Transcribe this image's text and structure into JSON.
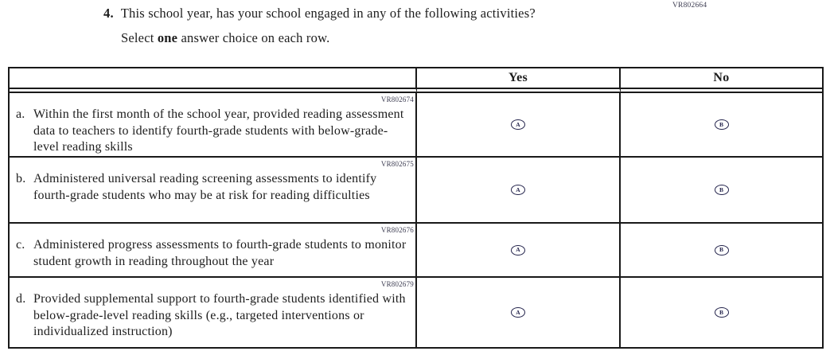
{
  "question": {
    "number": "4.",
    "text": "This school year, has your school engaged in any of the following activities?",
    "instruction_prefix": "Select ",
    "instruction_bold": "one",
    "instruction_suffix": " answer choice on each row.",
    "vr_code": "VR802664"
  },
  "table": {
    "columns": [
      "Yes",
      "No"
    ],
    "rows": [
      {
        "vr": "VR802674",
        "letter": "a.",
        "text": "Within the first month of the school year, provided reading assessment data to teachers to identify fourth-grade students with below-grade-level reading skills",
        "options": [
          "A",
          "B"
        ]
      },
      {
        "vr": "VR802675",
        "letter": "b.",
        "text": "Administered universal reading screening assessments to identify fourth-grade students who may be at risk for reading difficulties",
        "options": [
          "A",
          "B"
        ]
      },
      {
        "vr": "VR802676",
        "letter": "c.",
        "text": "Administered progress assessments to fourth-grade students to monitor student growth in reading throughout the year",
        "options": [
          "A",
          "B"
        ]
      },
      {
        "vr": "VR802679",
        "letter": "d.",
        "text": "Provided supplemental support to fourth-grade students identified with below-grade-level reading skills (e.g., targeted interventions or individualized instruction)",
        "options": [
          "A",
          "B"
        ]
      }
    ]
  },
  "colors": {
    "border": "#191919",
    "text": "#1d1d1d",
    "vr_label": "#3d3d52",
    "bubble": "#26264e"
  }
}
